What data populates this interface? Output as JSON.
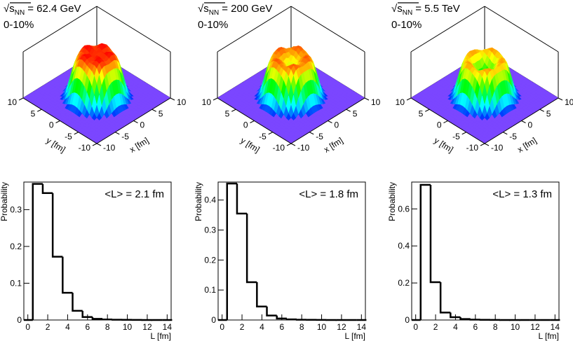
{
  "chart_data": [
    {
      "type": "surface",
      "title": "√s",
      "title_sub": "NN",
      "title_rest": "= 62.4 GeV",
      "subtitle": "0-10%",
      "xlabel": "x [fm]",
      "ylabel": "y [fm]",
      "xlim": [
        -10,
        10
      ],
      "ylim": [
        -10,
        10
      ],
      "xticks": [
        -10,
        -5,
        0,
        5,
        10
      ],
      "yticks": [
        -10,
        -5,
        0,
        5,
        10
      ]
    },
    {
      "type": "surface",
      "title": "√s",
      "title_sub": "NN",
      "title_rest": "= 200 GeV",
      "subtitle": "0-10%",
      "xlabel": "x [fm]",
      "ylabel": "y [fm]",
      "xlim": [
        -10,
        10
      ],
      "ylim": [
        -10,
        10
      ],
      "xticks": [
        -10,
        -5,
        0,
        5,
        10
      ],
      "yticks": [
        -10,
        -5,
        0,
        5,
        10
      ]
    },
    {
      "type": "surface",
      "title": "√s",
      "title_sub": "NN",
      "title_rest": "= 5.5 TeV",
      "subtitle": "0-10%",
      "xlabel": "x [fm]",
      "ylabel": "y [fm]",
      "xlim": [
        -10,
        10
      ],
      "ylim": [
        -10,
        10
      ],
      "xticks": [
        -10,
        -5,
        0,
        5,
        10
      ],
      "yticks": [
        -10,
        -5,
        0,
        5,
        10
      ]
    },
    {
      "type": "histogram",
      "annotation": "<L> = 2.1 fm",
      "xlabel": "L [fm]",
      "ylabel": "Probability",
      "color": "#000000",
      "bins": [
        0.5,
        1.5,
        2.5,
        3.5,
        4.5,
        5.5,
        6.5,
        7.5,
        8.5,
        9.5,
        10.5,
        11.5,
        12.5,
        13.5,
        14.5
      ],
      "values": [
        0.37,
        0.345,
        0.172,
        0.074,
        0.025,
        0.008,
        0.003,
        0.0015,
        0.0008,
        0.0004,
        0.0002,
        0.0001,
        0,
        0
      ],
      "xlim": [
        -0.4,
        14.4
      ],
      "ylim": [
        0,
        0.375
      ],
      "xticks": [
        0,
        2,
        4,
        6,
        8,
        10,
        12,
        14
      ],
      "yticks": [
        0,
        0.1,
        0.2,
        0.3
      ]
    },
    {
      "type": "histogram",
      "annotation": "<L> = 1.8 fm",
      "xlabel": "L [fm]",
      "ylabel": "Probability",
      "color": "#000000",
      "bins": [
        0.5,
        1.5,
        2.5,
        3.5,
        4.5,
        5.5,
        6.5,
        7.5,
        8.5,
        9.5,
        10.5,
        11.5,
        12.5,
        13.5,
        14.5
      ],
      "values": [
        0.455,
        0.355,
        0.126,
        0.045,
        0.015,
        0.005,
        0.002,
        0.001,
        0.0005,
        0.0002,
        0.0001,
        0,
        0,
        0
      ],
      "xlim": [
        -0.4,
        14.4
      ],
      "ylim": [
        0,
        0.46
      ],
      "xticks": [
        0,
        2,
        4,
        6,
        8,
        10,
        12,
        14
      ],
      "yticks": [
        0,
        0.1,
        0.2,
        0.3,
        0.4
      ]
    },
    {
      "type": "histogram",
      "annotation": "<L> = 1.3 fm",
      "xlabel": "L [fm]",
      "ylabel": "Probability",
      "color": "#000000",
      "bins": [
        0.5,
        1.5,
        2.5,
        3.5,
        4.5,
        5.5,
        6.5,
        7.5,
        8.5,
        9.5,
        10.5,
        11.5,
        12.5,
        13.5,
        14.5
      ],
      "values": [
        0.73,
        0.204,
        0.04,
        0.015,
        0.005,
        0.002,
        0.001,
        0.0005,
        0.0002,
        0.0001,
        0,
        0,
        0,
        0
      ],
      "xlim": [
        -0.4,
        14.4
      ],
      "ylim": [
        0,
        0.745
      ],
      "xticks": [
        0,
        2,
        4,
        6,
        8,
        10,
        12,
        14
      ],
      "yticks": [
        0,
        0.2,
        0.4,
        0.6
      ]
    }
  ]
}
